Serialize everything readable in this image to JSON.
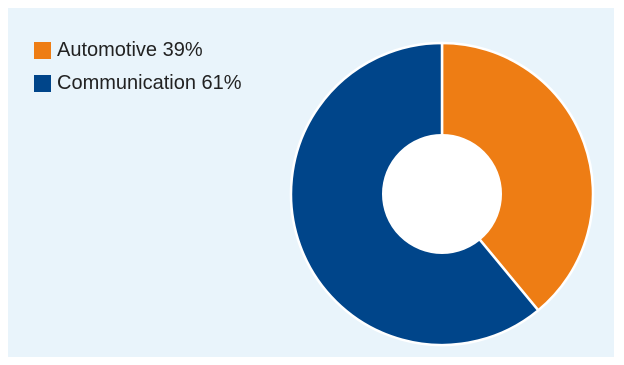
{
  "chart_data": {
    "type": "pie",
    "variant": "donut",
    "title": "",
    "categories": [
      "Automotive",
      "Communication"
    ],
    "values": [
      39,
      61
    ],
    "labels": [
      "Automotive 39%",
      "Communication 61%"
    ],
    "colors": [
      "#ee7d14",
      "#00458a"
    ],
    "background": "#e9f4fb",
    "legend_position": "top-left",
    "start_angle": "top (12 o'clock), clockwise"
  }
}
